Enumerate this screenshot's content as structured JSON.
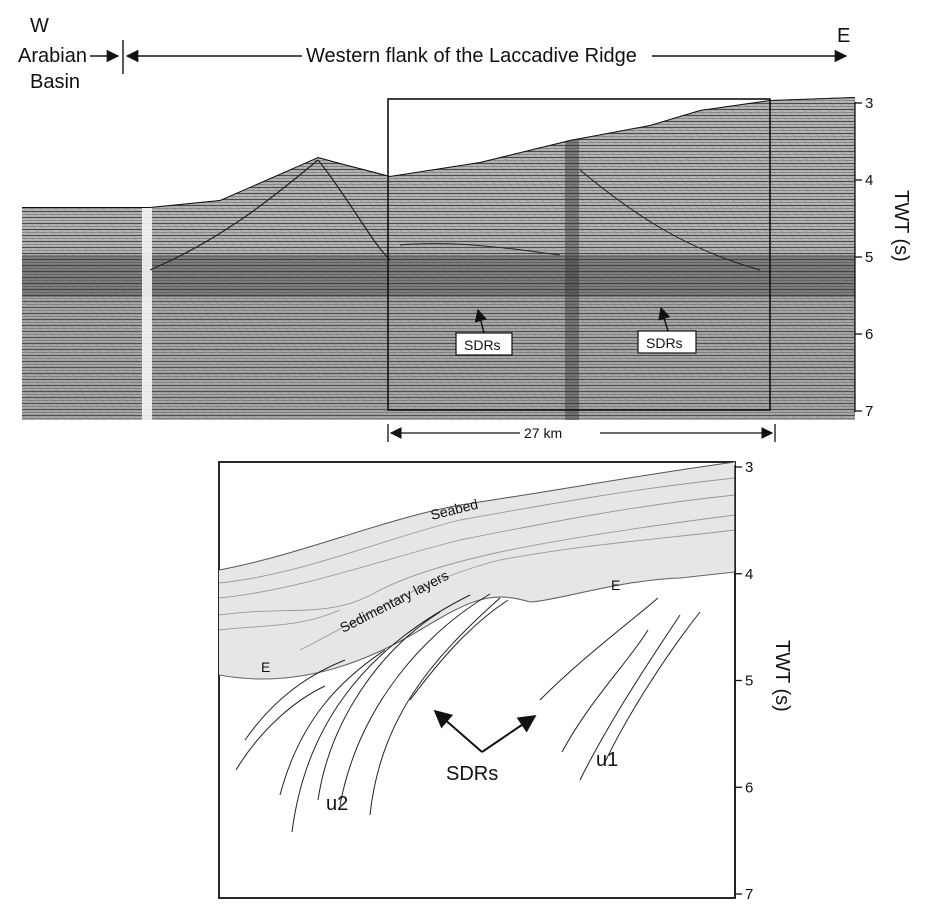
{
  "header": {
    "west_letter": "W",
    "east_letter": "E",
    "basin_label_line1": "Arabian",
    "basin_label_line2": "Basin",
    "flank_label": "Western flank of the Laccadive Ridge"
  },
  "seismic_panel": {
    "sdr_label_left": "SDRs",
    "sdr_label_right": "SDRs",
    "scale_label": "27 km",
    "twt_axis": {
      "label": "TWT (s)",
      "ticks": [
        "3",
        "4",
        "5",
        "6",
        "7"
      ],
      "range": [
        3,
        7
      ]
    }
  },
  "interpretation_panel": {
    "seabed_label": "Seabed",
    "sedimentary_label": "Sedimentary layers",
    "e_label_left": "E",
    "e_label_right": "E",
    "sdrs_label": "SDRs",
    "unit1_label": "u1",
    "unit2_label": "u2",
    "twt_axis": {
      "label": "TWT (s)",
      "ticks": [
        "3",
        "4",
        "5",
        "6",
        "7"
      ],
      "range": [
        3,
        7
      ]
    },
    "colors": {
      "sediment_fill": "#e6e6e6",
      "line": "#222222"
    }
  }
}
